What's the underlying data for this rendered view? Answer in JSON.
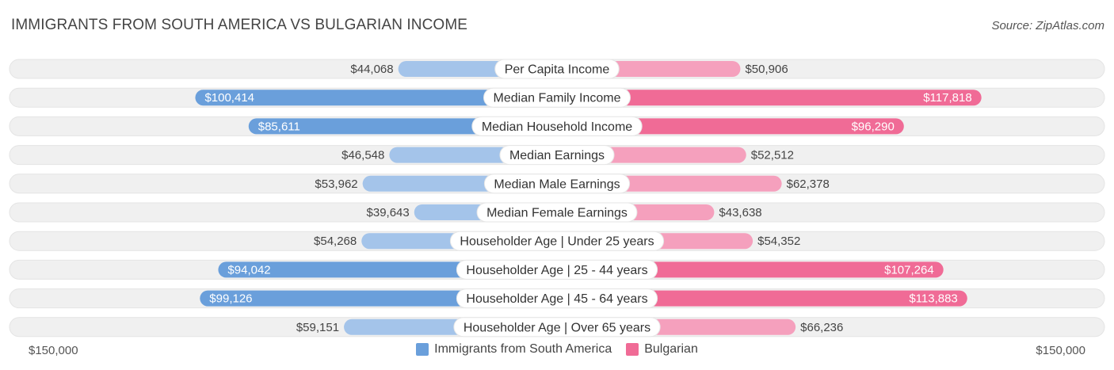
{
  "header": {
    "title": "IMMIGRANTS FROM SOUTH AMERICA VS BULGARIAN INCOME",
    "source": "Source: ZipAtlas.com"
  },
  "colors": {
    "left_strong": "#6a9fdb",
    "left_light": "#a4c4ea",
    "right_strong": "#f06b96",
    "right_light": "#f5a0bd",
    "row_bg": "#f0f0f0"
  },
  "chart_data": {
    "type": "bar",
    "orientation": "horizontal-diverging",
    "axis_max": 150000,
    "axis_labels": {
      "left": "$150,000",
      "right": "$150,000"
    },
    "legend_placement": "bottom-center",
    "series": [
      {
        "name": "Immigrants from South America",
        "color": "#6a9fdb"
      },
      {
        "name": "Bulgarian",
        "color": "#f06b96"
      }
    ],
    "rows": [
      {
        "label": "Per Capita Income",
        "left": 44068,
        "left_text": "$44,068",
        "right": 50906,
        "right_text": "$50,906"
      },
      {
        "label": "Median Family Income",
        "left": 100414,
        "left_text": "$100,414",
        "right": 117818,
        "right_text": "$117,818"
      },
      {
        "label": "Median Household Income",
        "left": 85611,
        "left_text": "$85,611",
        "right": 96290,
        "right_text": "$96,290"
      },
      {
        "label": "Median Earnings",
        "left": 46548,
        "left_text": "$46,548",
        "right": 52512,
        "right_text": "$52,512"
      },
      {
        "label": "Median Male Earnings",
        "left": 53962,
        "left_text": "$53,962",
        "right": 62378,
        "right_text": "$62,378"
      },
      {
        "label": "Median Female Earnings",
        "left": 39643,
        "left_text": "$39,643",
        "right": 43638,
        "right_text": "$43,638"
      },
      {
        "label": "Householder Age | Under 25 years",
        "left": 54268,
        "left_text": "$54,268",
        "right": 54352,
        "right_text": "$54,352"
      },
      {
        "label": "Householder Age | 25 - 44 years",
        "left": 94042,
        "left_text": "$94,042",
        "right": 107264,
        "right_text": "$107,264"
      },
      {
        "label": "Householder Age | 45 - 64 years",
        "left": 99126,
        "left_text": "$99,126",
        "right": 113883,
        "right_text": "$113,883"
      },
      {
        "label": "Householder Age | Over 65 years",
        "left": 59151,
        "left_text": "$59,151",
        "right": 66236,
        "right_text": "$66,236"
      }
    ]
  }
}
